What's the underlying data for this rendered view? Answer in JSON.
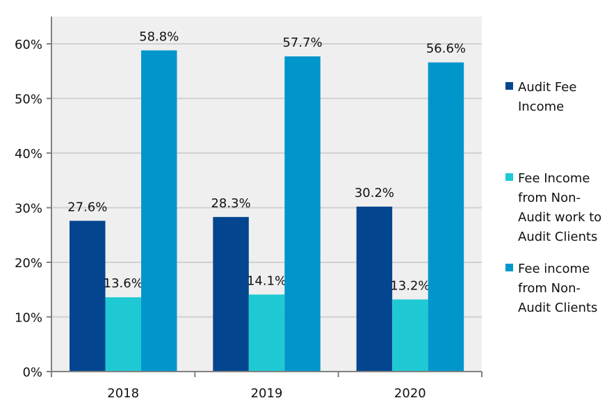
{
  "chart_data": {
    "type": "bar",
    "categories": [
      "2018",
      "2019",
      "2020"
    ],
    "series": [
      {
        "name": "Audit Fee Income",
        "legend_lines": [
          "Audit Fee",
          "Income"
        ],
        "values": [
          27.6,
          28.3,
          30.2
        ],
        "labels": [
          "27.6%",
          "28.3%",
          "30.2%"
        ],
        "color": "#03468f"
      },
      {
        "name": "Fee Income from Non-Audit work to Audit Clients",
        "legend_lines": [
          "Fee Income",
          "from Non-",
          "Audit work to",
          "Audit Clients"
        ],
        "values": [
          13.6,
          14.1,
          13.2
        ],
        "labels": [
          "13.6%",
          "14.1%",
          "13.2%"
        ],
        "color": "#1fc9d3"
      },
      {
        "name": "Fee income from Non-Audit Clients",
        "legend_lines": [
          "Fee income",
          "from Non-",
          "Audit Clients"
        ],
        "values": [
          58.8,
          57.7,
          56.6
        ],
        "labels": [
          "58.8%",
          "57.7%",
          "56.6%"
        ],
        "color": "#0096cc"
      }
    ],
    "yticks": [
      "0%",
      "10%",
      "20%",
      "30%",
      "40%",
      "50%",
      "60%"
    ],
    "ylim": [
      0,
      65
    ],
    "ylabel": "",
    "xlabel": "",
    "title": "",
    "grid": true,
    "legend_position": "right",
    "plot_background": "#efefef"
  }
}
